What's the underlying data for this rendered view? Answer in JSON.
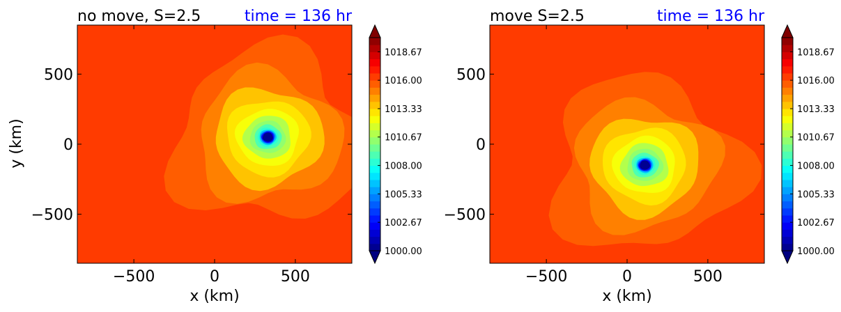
{
  "chart_data": [
    {
      "type": "contourf",
      "title": "no move, S=2.5",
      "time_label": "time = 136 hr",
      "time_color": "#0000ff",
      "xlabel": "x (km)",
      "ylabel": "y (km)",
      "xlim": [
        -850,
        850
      ],
      "ylim": [
        -850,
        850
      ],
      "xticks": [
        -500,
        0,
        500
      ],
      "yticks": [
        -500,
        0,
        500
      ],
      "xtick_labels": [
        "−500",
        "0",
        "500"
      ],
      "ytick_labels": [
        "−500",
        "0",
        "500"
      ],
      "field": "pressure (contour fill)",
      "vortex_center_km": [
        330,
        50
      ],
      "min_level": 1000.0,
      "background_level": 1016.5
    },
    {
      "type": "contourf",
      "title": "move S=2.5",
      "time_label": "time = 136 hr",
      "time_color": "#0000ff",
      "xlabel": "x (km)",
      "ylabel": "",
      "xlim": [
        -850,
        850
      ],
      "ylim": [
        -850,
        850
      ],
      "xticks": [
        -500,
        0,
        500
      ],
      "yticks": [
        -500,
        0,
        500
      ],
      "xtick_labels": [
        "−500",
        "0",
        "500"
      ],
      "ytick_labels": [
        "−500",
        "0",
        "500"
      ],
      "field": "pressure (contour fill)",
      "vortex_center_km": [
        110,
        -150
      ],
      "min_level": 1000.0,
      "background_level": 1016.5
    }
  ],
  "colorbar": {
    "min": 1000.0,
    "max": 1020.0,
    "extend": "both",
    "tick_values": [
      1000.0,
      1002.67,
      1005.33,
      1008.0,
      1010.67,
      1013.33,
      1016.0,
      1018.67
    ],
    "tick_labels": [
      "1000.00",
      "1002.67",
      "1005.33",
      "1008.00",
      "1010.67",
      "1013.33",
      "1016.00",
      "1018.67"
    ],
    "colormap": "jet"
  }
}
